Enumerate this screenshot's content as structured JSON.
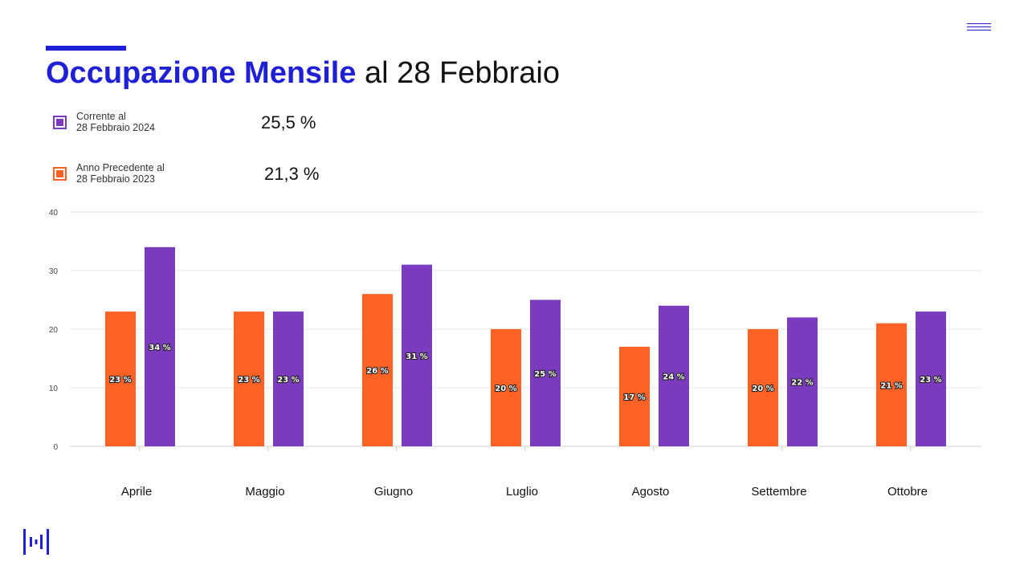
{
  "header": {
    "title_strong": "Occupazione Mensile",
    "title_rest": " al 28 Febbraio",
    "menu_icon": "hamburger-icon",
    "logo_icon": "bars-logo-icon"
  },
  "legend": {
    "items": [
      {
        "line1": "Corrente al",
        "line2": "28 Febbraio 2024",
        "value": "25,5 %",
        "color": "#7a3bbf"
      },
      {
        "line1": "Anno Precedente al",
        "line2": "28 Febbraio 2023",
        "value": "21,3 %",
        "color": "#ff6224"
      }
    ]
  },
  "colors": {
    "accent": "#1f20d6",
    "current": "#7a3bbf",
    "previous": "#ff6224",
    "grid": "#e6e6e6"
  },
  "chart_data": {
    "type": "bar",
    "categories": [
      "Aprile",
      "Maggio",
      "Giugno",
      "Luglio",
      "Agosto",
      "Settembre",
      "Ottobre"
    ],
    "series": [
      {
        "values": [
          23,
          23,
          26,
          20,
          17,
          20,
          21
        ],
        "labels": [
          "23 %",
          "23 %",
          "26 %",
          "20 %",
          "17 %",
          "20 %",
          "21 %"
        ],
        "color": "#ff6224"
      },
      {
        "values": [
          34,
          23,
          31,
          25,
          24,
          22,
          23
        ],
        "labels": [
          "34 %",
          "23 %",
          "31 %",
          "25 %",
          "24 %",
          "22 %",
          "23 %"
        ],
        "color": "#7a3bbf"
      }
    ],
    "ylim": [
      0,
      40
    ],
    "yticks": [
      "0",
      "10",
      "20",
      "30",
      "40"
    ],
    "grid": true
  }
}
